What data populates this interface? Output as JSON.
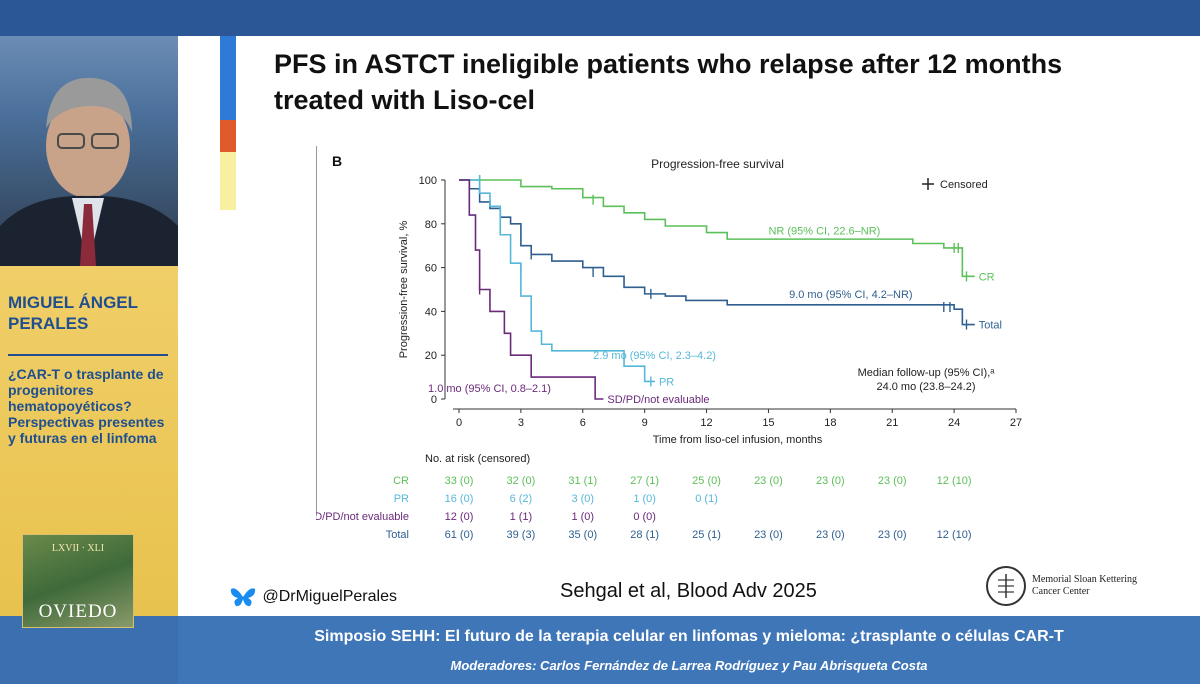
{
  "sidebar": {
    "speaker_name": "MIGUEL ÁNGEL PERALES",
    "talk_title": "¿CAR-T o trasplante de progenitores hematopoyéticos? Perspectivas presentes y futuras en el linfoma",
    "event_city": "OVIEDO",
    "event_text": "LXVII · XLI"
  },
  "slide": {
    "title": "PFS in ASTCT ineligible patients who relapse after 12 months treated with Liso-cel",
    "reference": "Sehgal et al, Blood Adv 2025",
    "handle": "@DrMiguelPerales",
    "institution_line1": "Memorial Sloan Kettering",
    "institution_line2": "Cancer Center",
    "accent_colors": [
      "#2e7ad6",
      "#2e7ad6",
      "#e05a2a",
      "#f7f0a0"
    ]
  },
  "footer": {
    "title": "Simposio SEHH: El futuro de la terapia celular en linfomas y mieloma: ¿trasplante o células CAR-T",
    "moderators": "Moderadores: Carlos Fernández de Larrea Rodríguez y Pau Abrisqueta Costa"
  },
  "chart_data": {
    "type": "line",
    "panel_label": "B",
    "title": "Progression-free survival",
    "xlabel": "Time from liso-cel infusion, months",
    "ylabel": "Progression-free survival, %",
    "xlim": [
      0,
      27
    ],
    "ylim": [
      0,
      100
    ],
    "xticks": [
      0,
      3,
      6,
      9,
      12,
      15,
      18,
      21,
      24,
      27
    ],
    "yticks": [
      0,
      20,
      40,
      60,
      80,
      100
    ],
    "censored_legend": "Censored",
    "series": [
      {
        "name": "CR",
        "color": "#5cc05a",
        "points": [
          [
            0,
            100
          ],
          [
            1.5,
            100
          ],
          [
            3,
            97
          ],
          [
            4.5,
            96
          ],
          [
            6,
            92
          ],
          [
            7,
            88
          ],
          [
            8,
            85
          ],
          [
            9,
            82
          ],
          [
            10,
            79
          ],
          [
            12,
            76
          ],
          [
            13,
            73
          ],
          [
            18,
            73
          ],
          [
            22,
            71
          ],
          [
            23.5,
            69
          ],
          [
            24.3,
            69
          ],
          [
            24.4,
            56
          ],
          [
            25,
            56
          ]
        ],
        "censors": [
          [
            1,
            100
          ],
          [
            6.5,
            91
          ],
          [
            24,
            69
          ],
          [
            24.2,
            69
          ],
          [
            24.6,
            56
          ]
        ],
        "annotation": "NR (95% CI, 22.6–NR)",
        "annotation_at": [
          15,
          77
        ]
      },
      {
        "name": "Total",
        "color": "#2f5f8f",
        "points": [
          [
            0,
            100
          ],
          [
            0.5,
            96
          ],
          [
            1,
            90
          ],
          [
            1.5,
            87
          ],
          [
            2,
            83
          ],
          [
            2.5,
            80
          ],
          [
            3,
            70
          ],
          [
            3.5,
            66
          ],
          [
            4.5,
            63
          ],
          [
            6,
            60
          ],
          [
            7,
            56
          ],
          [
            8,
            51
          ],
          [
            9,
            48
          ],
          [
            10,
            47
          ],
          [
            11,
            45
          ],
          [
            13,
            43
          ],
          [
            22,
            43
          ],
          [
            24,
            41
          ],
          [
            24.3,
            41
          ],
          [
            24.4,
            34
          ],
          [
            25,
            34
          ]
        ],
        "censors": [
          [
            3.5,
            66
          ],
          [
            6.5,
            58
          ],
          [
            9.3,
            48
          ],
          [
            23.5,
            42
          ],
          [
            23.8,
            42
          ],
          [
            24.6,
            34
          ]
        ],
        "annotation": "9.0 mo (95% CI, 4.2–NR)",
        "annotation_at": [
          16,
          48
        ]
      },
      {
        "name": "PR",
        "color": "#55b8d8",
        "points": [
          [
            0,
            100
          ],
          [
            1,
            94
          ],
          [
            1.5,
            88
          ],
          [
            2,
            75
          ],
          [
            2.5,
            62
          ],
          [
            3,
            47
          ],
          [
            3.5,
            31
          ],
          [
            4,
            25
          ],
          [
            4.5,
            22
          ],
          [
            7,
            22
          ],
          [
            8,
            15
          ],
          [
            9,
            8
          ],
          [
            9.5,
            8
          ]
        ],
        "censors": [
          [
            1,
            100
          ],
          [
            3,
            60
          ],
          [
            9.3,
            8
          ]
        ],
        "annotation": "2.9 mo (95% CI, 2.3–4.2)",
        "annotation_at": [
          6.5,
          20
        ]
      },
      {
        "name": "SD/PD/not evaluable",
        "color": "#6a2a7a",
        "points": [
          [
            0,
            100
          ],
          [
            0.5,
            84
          ],
          [
            0.8,
            68
          ],
          [
            1,
            50
          ],
          [
            1.5,
            40
          ],
          [
            2,
            40
          ],
          [
            2.2,
            30
          ],
          [
            2.5,
            20
          ],
          [
            3,
            20
          ],
          [
            3.5,
            10
          ],
          [
            6.5,
            10
          ],
          [
            6.6,
            0
          ],
          [
            7,
            0
          ]
        ],
        "censors": [
          [
            1,
            50
          ]
        ],
        "annotation": "1.0 mo (95% CI, 0.8–2.1)",
        "annotation_at": [
          -1.5,
          5
        ]
      }
    ],
    "followup_note_line1": "Median follow-up (95% CI),ᵃ",
    "followup_note_line2": "24.0 mo (23.8–24.2)",
    "risk_table": {
      "header": "No. at risk (censored)",
      "rows": [
        {
          "label": "CR",
          "color": "#5cc05a",
          "values": [
            "33 (0)",
            "32 (0)",
            "31 (1)",
            "27 (1)",
            "25 (0)",
            "23 (0)",
            "23 (0)",
            "23 (0)",
            "12 (10)"
          ]
        },
        {
          "label": "PR",
          "color": "#55b8d8",
          "values": [
            "16 (0)",
            "6 (2)",
            "3 (0)",
            "1 (0)",
            "0 (1)"
          ]
        },
        {
          "label": "SD/PD/not evaluable",
          "color": "#6a2a7a",
          "values": [
            "12 (0)",
            "1 (1)",
            "1 (0)",
            "0 (0)"
          ]
        },
        {
          "label": "Total",
          "color": "#2f5f8f",
          "values": [
            "61 (0)",
            "39 (3)",
            "35 (0)",
            "28 (1)",
            "25 (1)",
            "23 (0)",
            "23 (0)",
            "23 (0)",
            "12 (10)"
          ]
        }
      ]
    }
  }
}
